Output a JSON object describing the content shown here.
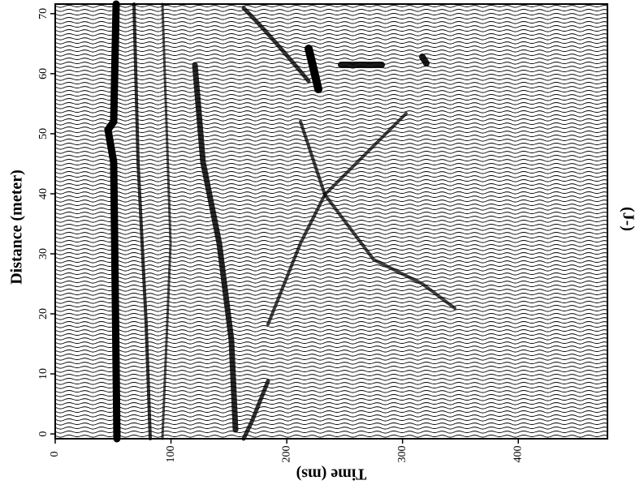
{
  "chart_data": {
    "type": "wiggle",
    "x_label": "Time (ms)",
    "y_label": "Distance (meter)",
    "annotation": "(J-)",
    "xlim": [
      0,
      477
    ],
    "xticks": [
      0,
      100,
      200,
      300,
      400
    ],
    "ylim": [
      -0.8,
      71.6
    ],
    "yticks": [
      0,
      10,
      20,
      30,
      40,
      50,
      60,
      70
    ]
  }
}
